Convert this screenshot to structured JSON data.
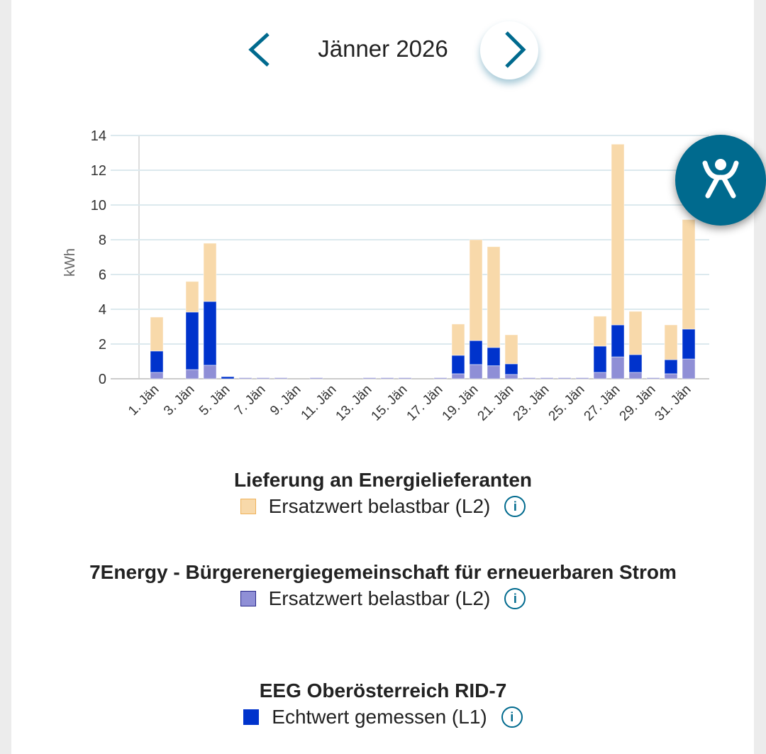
{
  "header": {
    "month_label": "Jänner 2026",
    "prev_icon": "chevron-left-icon",
    "next_icon": "chevron-right-icon"
  },
  "accessibility": {
    "icon": "accessibility-icon"
  },
  "colors": {
    "accent": "#006a8e",
    "orange": "#f8d9aa",
    "orange_border": "#efb25a",
    "purple": "#8f8fd6",
    "blue": "#0033cc"
  },
  "chart_data": {
    "type": "bar",
    "stacked": true,
    "ylabel": "kWh",
    "ylim": [
      0,
      14
    ],
    "yticks": [
      0,
      2,
      4,
      6,
      8,
      10,
      12,
      14
    ],
    "grid": true,
    "days": [
      1,
      2,
      3,
      4,
      5,
      6,
      7,
      8,
      9,
      10,
      11,
      12,
      13,
      14,
      15,
      16,
      17,
      18,
      19,
      20,
      21,
      22,
      23,
      24,
      25,
      26,
      27,
      28,
      29,
      30,
      31
    ],
    "xtick_labels": [
      "1. Jän",
      "3. Jän",
      "5. Jän",
      "7. Jän",
      "9. Jän",
      "11. Jän",
      "13. Jän",
      "15. Jän",
      "17. Jän",
      "19. Jän",
      "21. Jän",
      "23. Jän",
      "25. Jän",
      "27. Jän",
      "29. Jän",
      "31. Jän"
    ],
    "series": [
      {
        "name": "7Energy - Ersatzwert belastbar (L2)",
        "color": "#8f8fd6",
        "values": [
          0.37,
          0,
          0.53,
          0.78,
          0,
          0.03,
          0.03,
          0.03,
          0,
          0.03,
          0,
          0,
          0.03,
          0.03,
          0.03,
          0,
          0.03,
          0.29,
          0.82,
          0.75,
          0.25,
          0.03,
          0.03,
          0.03,
          0.03,
          0.37,
          1.26,
          0.37,
          0.03,
          0.29,
          1.14
        ]
      },
      {
        "name": "EEG Oberösterreich RID-7 - Echtwert gemessen (L1)",
        "color": "#0033cc",
        "values": [
          1.23,
          0,
          3.31,
          3.67,
          0.12,
          0,
          0,
          0,
          0,
          0,
          0,
          0,
          0,
          0,
          0,
          0,
          0,
          1.06,
          1.38,
          1.05,
          0.61,
          0,
          0,
          0,
          0,
          1.51,
          1.84,
          1.02,
          0,
          0.81,
          1.72
        ]
      },
      {
        "name": "Lieferung an Energielieferanten - Ersatzwert belastbar (L2)",
        "color": "#f8d9aa",
        "values": [
          1.95,
          0,
          1.76,
          3.35,
          0,
          0,
          0,
          0,
          0,
          0,
          0,
          0,
          0,
          0,
          0,
          0,
          0,
          1.8,
          5.8,
          5.8,
          1.67,
          0,
          0,
          0,
          0,
          1.72,
          10.4,
          2.49,
          0,
          2.0,
          6.3
        ]
      }
    ]
  },
  "legend": [
    {
      "title": "Lieferung an Energielieferanten",
      "label": "Ersatzwert belastbar (L2)",
      "info": "i"
    },
    {
      "title": "7Energy - Bürgerenergiegemeinschaft für erneuerbaren Strom",
      "label": "Ersatzwert belastbar (L2)",
      "info": "i"
    },
    {
      "title": "EEG Oberösterreich RID-7",
      "label": "Echtwert gemessen (L1)",
      "info": "i"
    }
  ]
}
